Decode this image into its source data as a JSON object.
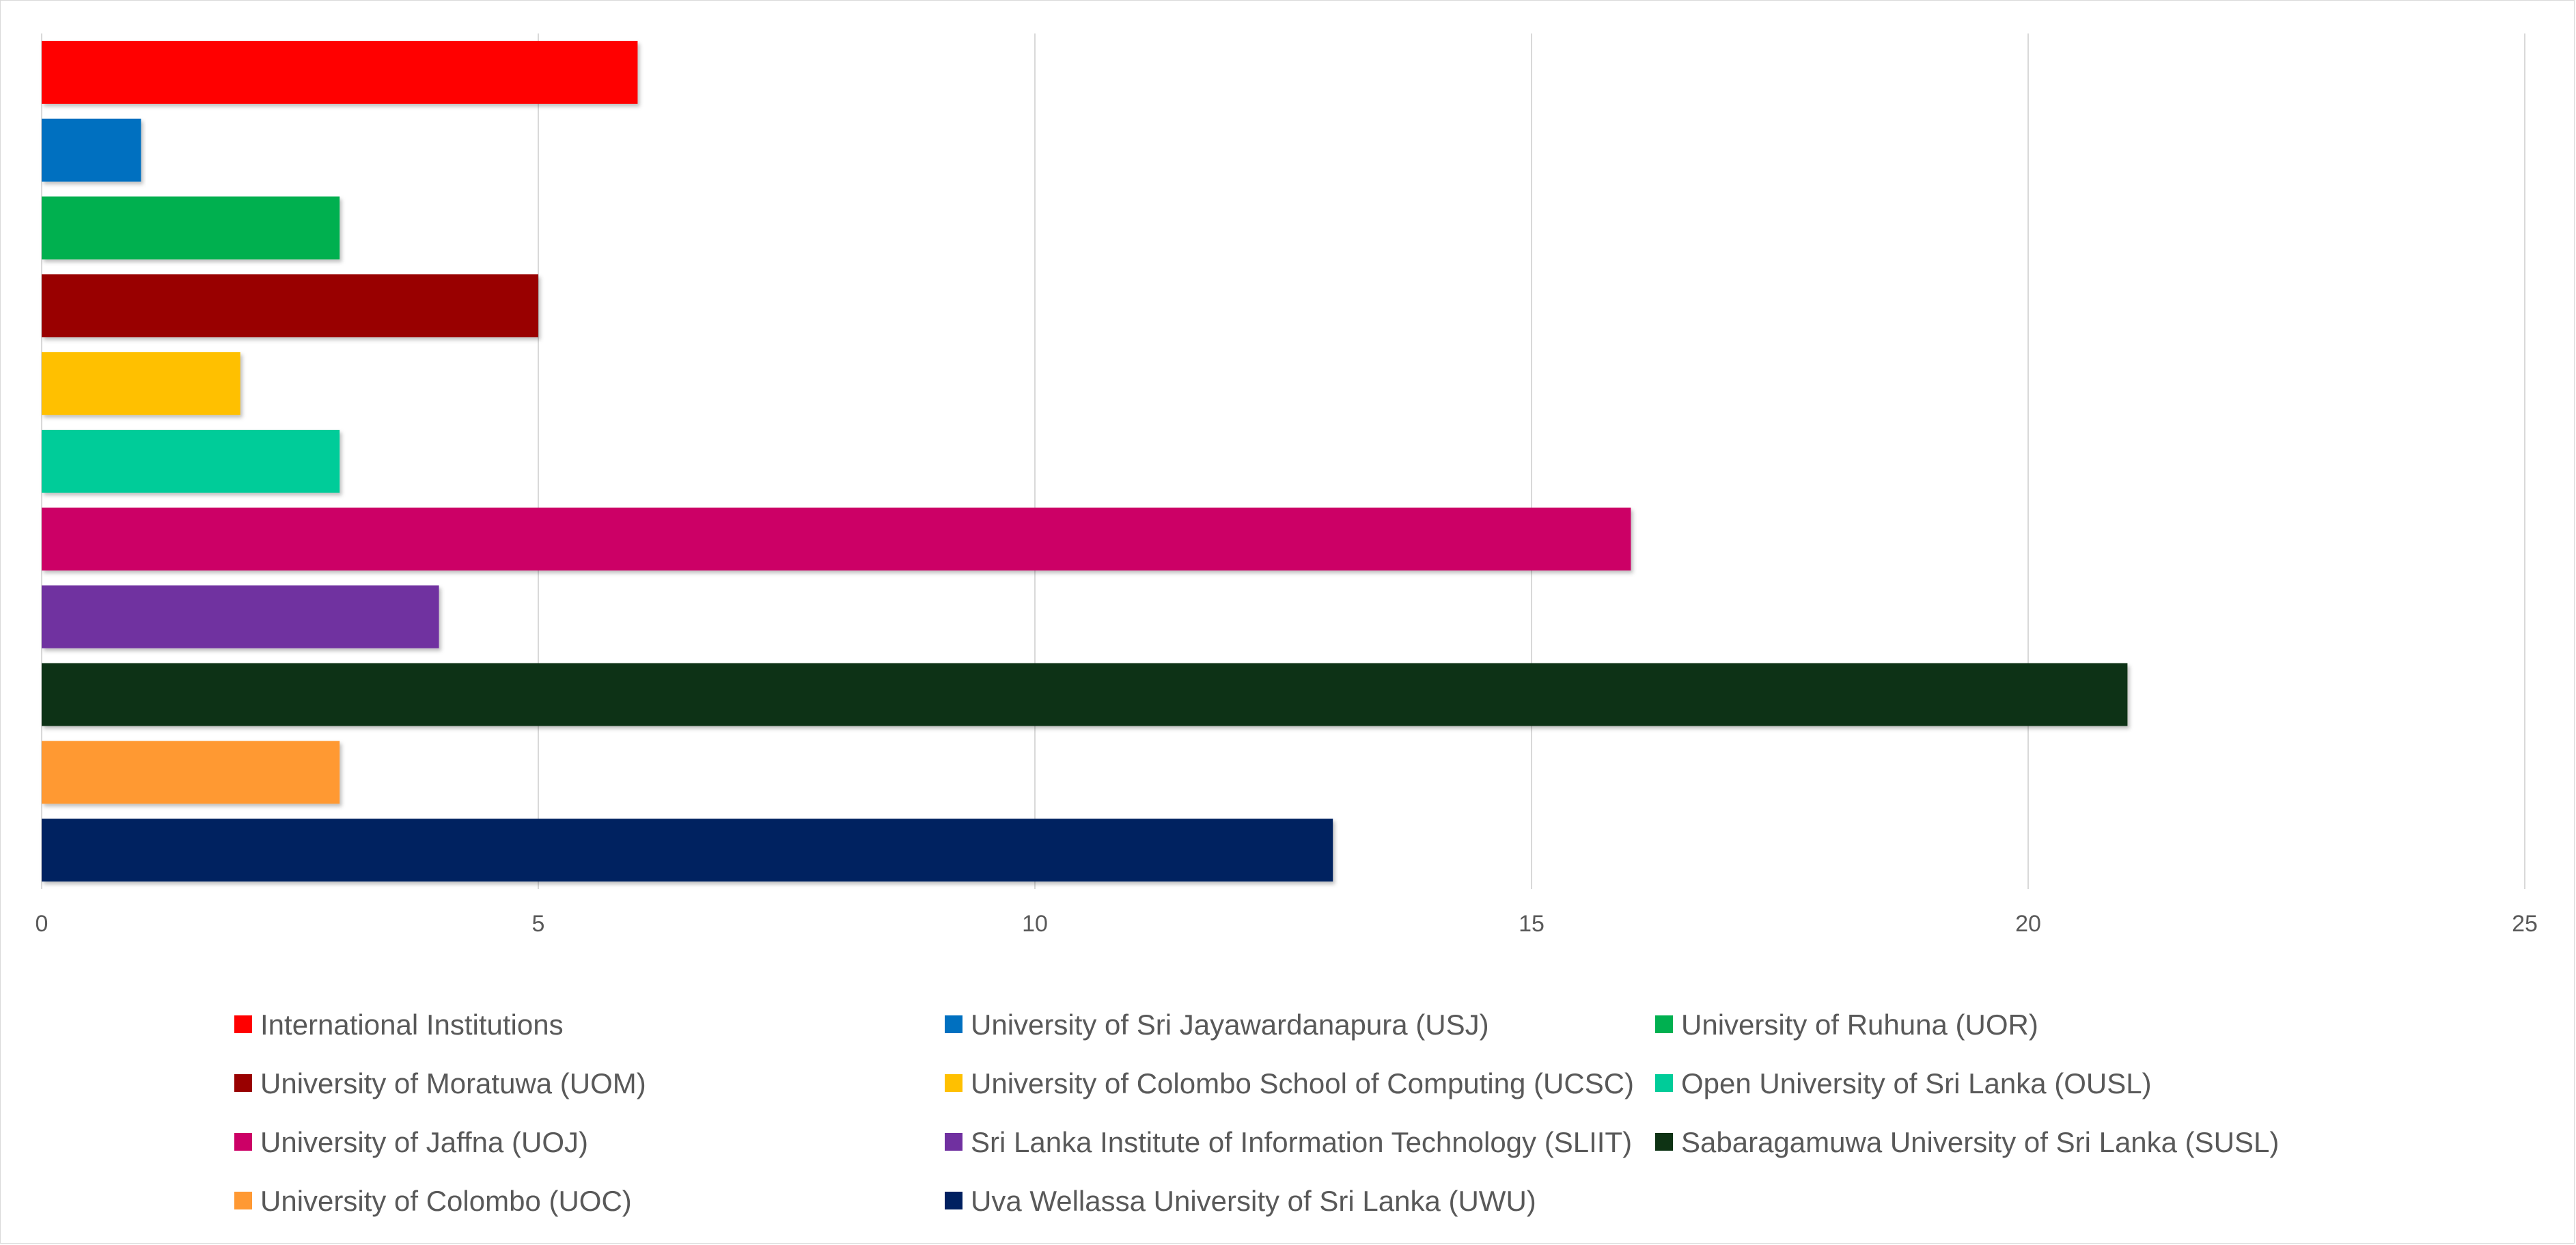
{
  "chart_data": {
    "type": "bar",
    "orientation": "horizontal",
    "title": "",
    "xlabel": "",
    "ylabel": "",
    "xlim": [
      0,
      25
    ],
    "x_ticks": [
      0,
      5,
      10,
      15,
      20,
      25
    ],
    "grid": true,
    "legend_position": "bottom",
    "series": [
      {
        "name": "International Institutions",
        "value": 6,
        "color": "#ff0000"
      },
      {
        "name": "University of Sri Jayawardanapura (USJ)",
        "value": 1,
        "color": "#0070c0"
      },
      {
        "name": "University of Ruhuna (UOR)",
        "value": 3,
        "color": "#00b050"
      },
      {
        "name": "University of Moratuwa (UOM)",
        "value": 5,
        "color": "#990000"
      },
      {
        "name": "University of Colombo School of Computing (UCSC)",
        "value": 2,
        "color": "#ffc000"
      },
      {
        "name": "Open University of Sri Lanka (OUSL)",
        "value": 3,
        "color": "#00cc99"
      },
      {
        "name": "University of Jaffna (UOJ)",
        "value": 16,
        "color": "#cc0066"
      },
      {
        "name": "Sri Lanka Institute of Information Technology (SLIIT)",
        "value": 4,
        "color": "#7030a0"
      },
      {
        "name": "Sabaragamuwa University of Sri Lanka (SUSL)",
        "value": 21,
        "color": "#0e3314"
      },
      {
        "name": "University of Colombo (UOC)",
        "value": 3,
        "color": "#ff9933"
      },
      {
        "name": "Uva Wellassa University of Sri Lanka (UWU)",
        "value": 13,
        "color": "#002060"
      }
    ]
  }
}
